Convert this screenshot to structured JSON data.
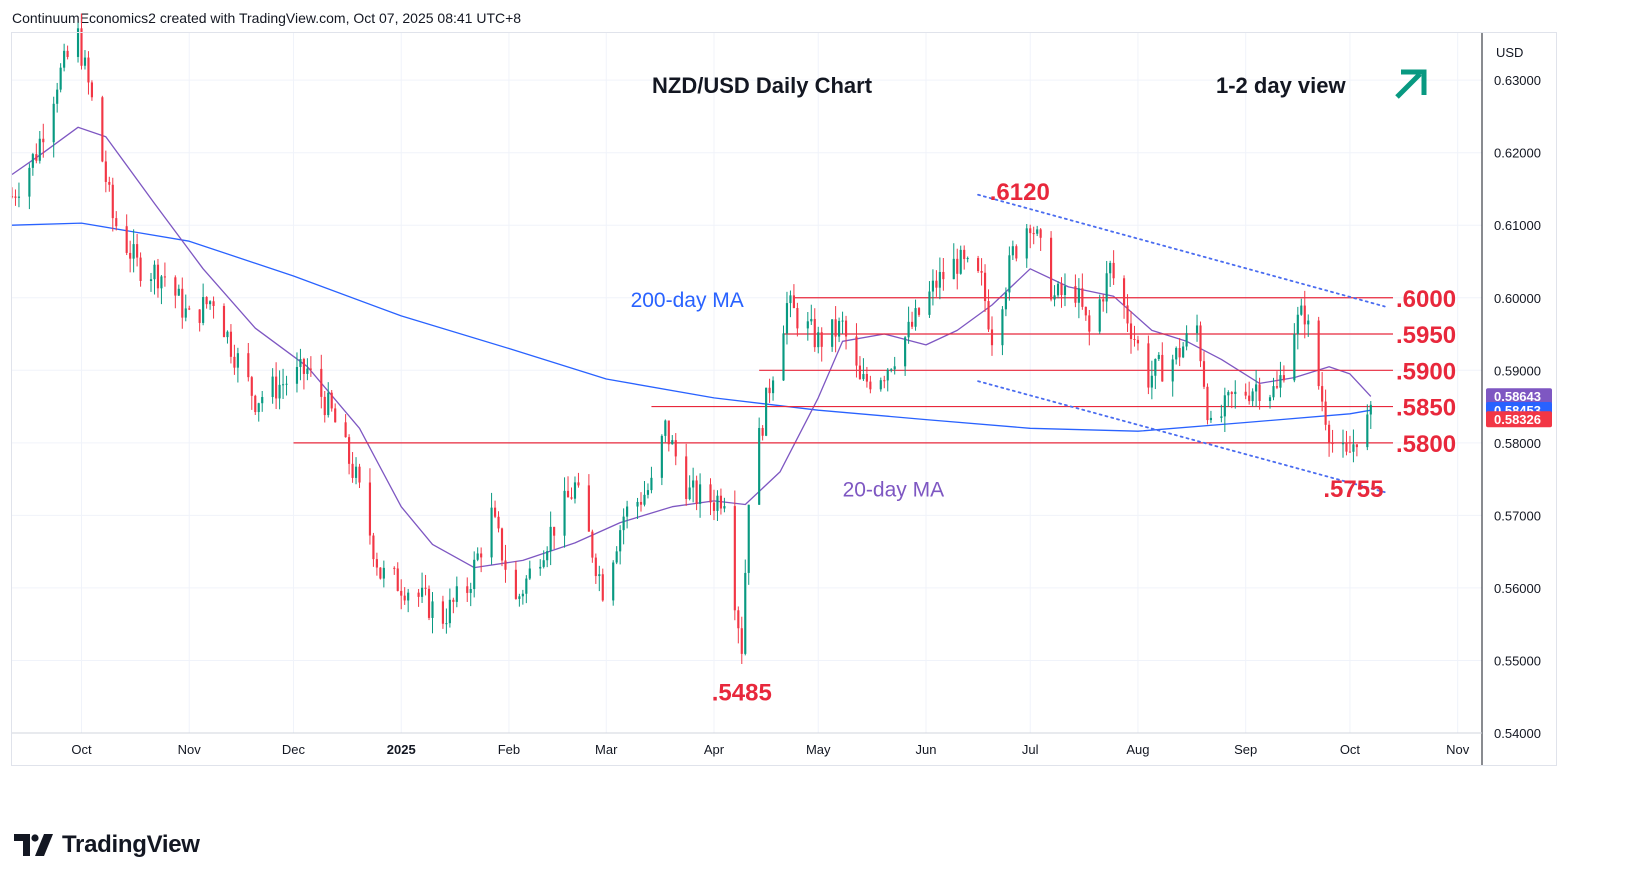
{
  "header": {
    "text": "ContinuumEconomics2 created with TradingView.com, Oct 07, 2025 08:41 UTC+8"
  },
  "footer": {
    "brand": "TradingView"
  },
  "colors": {
    "up": "#089981",
    "down": "#f23645",
    "ma200": "#2962ff",
    "ma20": "#7e57c2",
    "level": "#e8283c",
    "channel": "#4a6cf0",
    "arrow": "#089981",
    "grid": "#f0f3fa"
  },
  "chart_data": {
    "type": "candlestick",
    "title": "NZD/USD Daily Chart",
    "view_label": "1-2 day view",
    "view_icon": "arrow-up-right-icon",
    "currency": "USD",
    "ylim": [
      0.54,
      0.6365
    ],
    "y_ticks": [
      0.54,
      0.55,
      0.56,
      0.57,
      0.58,
      0.59,
      0.6,
      0.61,
      0.62,
      0.63
    ],
    "y_tick_labels": [
      "0.54000",
      "0.55000",
      "0.56000",
      "0.57000",
      "0.58000",
      "0.59000",
      "0.60000",
      "0.61000",
      "0.62000",
      "0.63000"
    ],
    "x_ticks": [
      {
        "date": "2024-10-01",
        "label": "Oct",
        "bold": false
      },
      {
        "date": "2024-11-01",
        "label": "Nov",
        "bold": false
      },
      {
        "date": "2024-12-01",
        "label": "Dec",
        "bold": false
      },
      {
        "date": "2025-01-01",
        "label": "2025",
        "bold": true
      },
      {
        "date": "2025-02-01",
        "label": "Feb",
        "bold": false
      },
      {
        "date": "2025-03-01",
        "label": "Mar",
        "bold": false
      },
      {
        "date": "2025-04-01",
        "label": "Apr",
        "bold": false
      },
      {
        "date": "2025-05-01",
        "label": "May",
        "bold": false
      },
      {
        "date": "2025-06-01",
        "label": "Jun",
        "bold": false
      },
      {
        "date": "2025-07-01",
        "label": "Jul",
        "bold": false
      },
      {
        "date": "2025-08-01",
        "label": "Aug",
        "bold": false
      },
      {
        "date": "2025-09-01",
        "label": "Sep",
        "bold": false
      },
      {
        "date": "2025-10-01",
        "label": "Oct",
        "bold": false
      },
      {
        "date": "2025-11-01",
        "label": "Nov",
        "bold": false
      }
    ],
    "x_range": [
      "2024-09-11",
      "2025-11-08"
    ],
    "price_badges": [
      {
        "value": 0.58643,
        "label": "0.58643",
        "bg": "#7e57c2"
      },
      {
        "value": 0.58453,
        "label": "0.58453",
        "bg": "#2962ff"
      },
      {
        "value": 0.58326,
        "label": "0.58326",
        "bg": "#f23645"
      }
    ],
    "levels": [
      {
        "value": 0.6,
        "label": ".6000",
        "from": "2025-04-24"
      },
      {
        "value": 0.595,
        "label": ".5950",
        "from": "2025-04-21"
      },
      {
        "value": 0.59,
        "label": ".5900",
        "from": "2025-04-14"
      },
      {
        "value": 0.585,
        "label": ".5850",
        "from": "2025-03-14"
      },
      {
        "value": 0.58,
        "label": ".5800",
        "from": "2024-12-01"
      }
    ],
    "annotations": [
      {
        "label": ".6120",
        "date": "2025-06-28",
        "value": 0.6135
      },
      {
        "label": ".5485",
        "date": "2025-04-09",
        "value": 0.5445
      },
      {
        "label": ".5755",
        "date": "2025-10-02",
        "value": 0.5725
      }
    ],
    "channel": [
      {
        "from": [
          "2025-06-16",
          0.6142
        ],
        "to": [
          "2025-10-11",
          0.5988
        ]
      },
      {
        "from": [
          "2025-06-16",
          0.5885
        ],
        "to": [
          "2025-10-11",
          0.5732
        ]
      }
    ],
    "ma_labels": [
      {
        "label": "200-day MA",
        "date": "2025-03-08",
        "value": 0.5998,
        "color": "#2962ff"
      },
      {
        "label": "20-day MA",
        "date": "2025-05-08",
        "value": 0.5737,
        "color": "#7e57c2"
      }
    ],
    "ma200": [
      [
        "2024-09-11",
        0.61
      ],
      [
        "2024-10-01",
        0.6103
      ],
      [
        "2024-11-01",
        0.6078
      ],
      [
        "2024-12-01",
        0.603
      ],
      [
        "2025-01-01",
        0.5975
      ],
      [
        "2025-02-01",
        0.593
      ],
      [
        "2025-03-01",
        0.5888
      ],
      [
        "2025-04-01",
        0.5862
      ],
      [
        "2025-05-01",
        0.5845
      ],
      [
        "2025-06-01",
        0.5832
      ],
      [
        "2025-07-01",
        0.582
      ],
      [
        "2025-08-01",
        0.5816
      ],
      [
        "2025-09-01",
        0.5828
      ],
      [
        "2025-10-01",
        0.584
      ],
      [
        "2025-10-07",
        0.5845
      ]
    ],
    "ma20": [
      [
        "2024-09-11",
        0.617
      ],
      [
        "2024-09-20",
        0.62
      ],
      [
        "2024-09-30",
        0.6235
      ],
      [
        "2024-10-08",
        0.6222
      ],
      [
        "2024-10-22",
        0.613
      ],
      [
        "2024-11-05",
        0.604
      ],
      [
        "2024-11-20",
        0.5958
      ],
      [
        "2024-12-05",
        0.5905
      ],
      [
        "2024-12-20",
        0.582
      ],
      [
        "2025-01-01",
        0.5712
      ],
      [
        "2025-01-10",
        0.566
      ],
      [
        "2025-01-22",
        0.5628
      ],
      [
        "2025-02-05",
        0.5638
      ],
      [
        "2025-02-20",
        0.5662
      ],
      [
        "2025-03-05",
        0.569
      ],
      [
        "2025-03-20",
        0.5712
      ],
      [
        "2025-04-01",
        0.572
      ],
      [
        "2025-04-10",
        0.5715
      ],
      [
        "2025-04-20",
        0.576
      ],
      [
        "2025-05-01",
        0.5862
      ],
      [
        "2025-05-08",
        0.594
      ],
      [
        "2025-05-20",
        0.595
      ],
      [
        "2025-06-01",
        0.5935
      ],
      [
        "2025-06-10",
        0.5955
      ],
      [
        "2025-06-20",
        0.599
      ],
      [
        "2025-07-01",
        0.604
      ],
      [
        "2025-07-12",
        0.6015
      ],
      [
        "2025-07-25",
        0.6002
      ],
      [
        "2025-08-05",
        0.5955
      ],
      [
        "2025-08-15",
        0.594
      ],
      [
        "2025-08-25",
        0.5915
      ],
      [
        "2025-09-05",
        0.5882
      ],
      [
        "2025-09-15",
        0.589
      ],
      [
        "2025-09-25",
        0.5905
      ],
      [
        "2025-10-01",
        0.5895
      ],
      [
        "2025-10-07",
        0.5864
      ]
    ],
    "close_path": [
      [
        "2024-09-11",
        0.614
      ],
      [
        "2024-09-18",
        0.62
      ],
      [
        "2024-09-24",
        0.63
      ],
      [
        "2024-09-30",
        0.636
      ],
      [
        "2024-10-04",
        0.627
      ],
      [
        "2024-10-10",
        0.611
      ],
      [
        "2024-10-17",
        0.6045
      ],
      [
        "2024-10-25",
        0.603
      ],
      [
        "2024-11-01",
        0.597
      ],
      [
        "2024-11-08",
        0.6
      ],
      [
        "2024-11-13",
        0.5935
      ],
      [
        "2024-11-20",
        0.586
      ],
      [
        "2024-11-27",
        0.588
      ],
      [
        "2024-12-05",
        0.59
      ],
      [
        "2024-12-12",
        0.584
      ],
      [
        "2024-12-19",
        0.575
      ],
      [
        "2024-12-26",
        0.562
      ],
      [
        "2025-01-03",
        0.56
      ],
      [
        "2025-01-13",
        0.556
      ],
      [
        "2025-01-20",
        0.56
      ],
      [
        "2025-01-27",
        0.57
      ],
      [
        "2025-02-03",
        0.558
      ],
      [
        "2025-02-10",
        0.565
      ],
      [
        "2025-02-20",
        0.574
      ],
      [
        "2025-02-28",
        0.56
      ],
      [
        "2025-03-06",
        0.57
      ],
      [
        "2025-03-14",
        0.574
      ],
      [
        "2025-03-18",
        0.582
      ],
      [
        "2025-03-25",
        0.573
      ],
      [
        "2025-04-01",
        0.572
      ],
      [
        "2025-04-04",
        0.573
      ],
      [
        "2025-04-07",
        0.559
      ],
      [
        "2025-04-09",
        0.552
      ],
      [
        "2025-04-11",
        0.573
      ],
      [
        "2025-04-17",
        0.588
      ],
      [
        "2025-04-22",
        0.599
      ],
      [
        "2025-05-01",
        0.594
      ],
      [
        "2025-05-08",
        0.596
      ],
      [
        "2025-05-13",
        0.588
      ],
      [
        "2025-05-20",
        0.59
      ],
      [
        "2025-05-28",
        0.596
      ],
      [
        "2025-06-04",
        0.602
      ],
      [
        "2025-06-10",
        0.605
      ],
      [
        "2025-06-17",
        0.602
      ],
      [
        "2025-06-20",
        0.595
      ],
      [
        "2025-06-26",
        0.606
      ],
      [
        "2025-07-01",
        0.611
      ],
      [
        "2025-07-08",
        0.6
      ],
      [
        "2025-07-14",
        0.601
      ],
      [
        "2025-07-18",
        0.595
      ],
      [
        "2025-07-24",
        0.604
      ],
      [
        "2025-07-30",
        0.596
      ],
      [
        "2025-08-04",
        0.589
      ],
      [
        "2025-08-12",
        0.592
      ],
      [
        "2025-08-18",
        0.596
      ],
      [
        "2025-08-22",
        0.5815
      ],
      [
        "2025-08-28",
        0.586
      ],
      [
        "2025-09-04",
        0.588
      ],
      [
        "2025-09-10",
        0.587
      ],
      [
        "2025-09-15",
        0.596
      ],
      [
        "2025-09-18",
        0.598
      ],
      [
        "2025-09-22",
        0.588
      ],
      [
        "2025-09-26",
        0.58
      ],
      [
        "2025-09-30",
        0.5775
      ],
      [
        "2025-10-03",
        0.5812
      ],
      [
        "2025-10-07",
        0.5833
      ]
    ]
  }
}
